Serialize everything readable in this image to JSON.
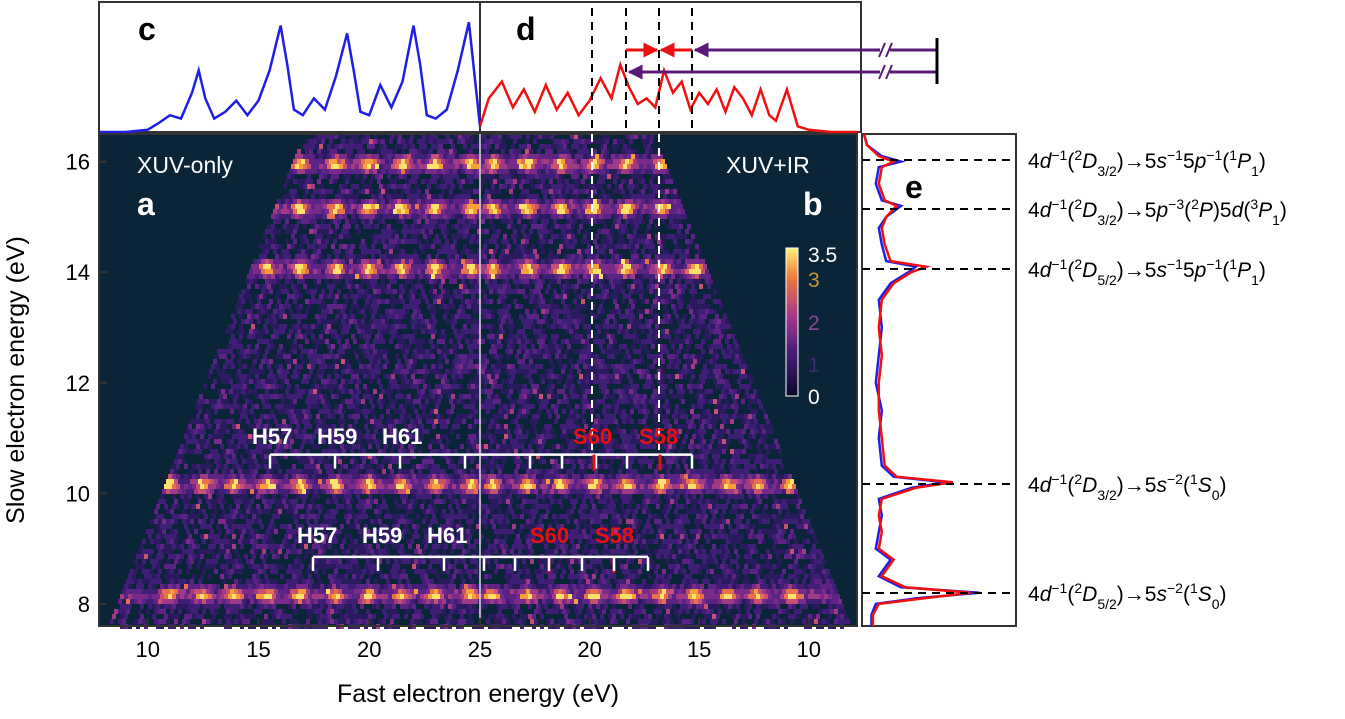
{
  "chart_data": [
    {
      "panel": "a",
      "type": "heatmap",
      "panel_label": "a",
      "annotation": "XUV-only",
      "xlabel": "Fast electron energy (eV)",
      "ylabel": "Slow electron energy (eV)",
      "x_ticks": [
        "10",
        "15",
        "20",
        "25"
      ],
      "x_tick_values": [
        10,
        15,
        20,
        25
      ],
      "y_ticks": [
        "8",
        "10",
        "12",
        "14",
        "16"
      ],
      "y_tick_values": [
        8,
        10,
        12,
        14,
        16
      ],
      "xlim": [
        7.8,
        25
      ],
      "ylim": [
        7.6,
        16.5
      ],
      "x_direction": "increasing",
      "colorbar": {
        "ticks": [
          "0",
          "1",
          "2",
          "3",
          "3.5"
        ],
        "tick_values": [
          0,
          1,
          2,
          3,
          3.5
        ],
        "range": [
          0,
          3.5
        ]
      },
      "harmonic_labels": [
        {
          "text": "H57",
          "y": 10.7,
          "x_ticks": [
            15.3,
            16.8,
            18.4,
            19.9,
            21.4,
            22.9,
            24.5
          ]
        },
        {
          "text": "H59",
          "y": 10.7
        },
        {
          "text": "H61",
          "y": 10.7
        },
        {
          "text": "H57",
          "y": 8.85,
          "x_ticks": [
            17.3,
            18.8,
            20.3,
            21.9,
            23.4,
            24.9
          ]
        },
        {
          "text": "H59",
          "y": 8.85
        },
        {
          "text": "H61",
          "y": 8.85
        }
      ],
      "bright_rows_y": [
        8.2,
        10.2,
        14.1,
        15.2,
        16.0
      ]
    },
    {
      "panel": "b",
      "type": "heatmap",
      "panel_label": "b",
      "annotation": "XUV+IR",
      "x_ticks": [
        "25",
        "20",
        "15",
        "10"
      ],
      "x_tick_values": [
        25,
        20,
        15,
        10
      ],
      "xlim": [
        25,
        7.8
      ],
      "x_direction": "decreasing",
      "sideband_labels": [
        "S60",
        "S58"
      ],
      "dashed_vertical_x": [
        20.0,
        16.8
      ],
      "bright_rows_y": [
        8.2,
        10.2,
        14.1,
        15.2,
        16.0
      ]
    },
    {
      "panel": "c",
      "type": "line",
      "panel_label": "c",
      "series_color": "#1f1fe6",
      "x": [
        7.8,
        9.0,
        10.0,
        10.5,
        11.0,
        11.5,
        12.0,
        12.3,
        12.6,
        13.0,
        13.5,
        14.0,
        14.5,
        15.0,
        15.5,
        16.0,
        16.3,
        16.6,
        17.0,
        17.5,
        18.0,
        18.5,
        19.0,
        19.3,
        19.6,
        20.0,
        20.5,
        21.0,
        21.5,
        22.0,
        22.3,
        22.6,
        23.0,
        23.5,
        24.0,
        24.5,
        25.0
      ],
      "y": [
        0.0,
        0.0,
        0.02,
        0.08,
        0.15,
        0.12,
        0.35,
        0.55,
        0.3,
        0.12,
        0.18,
        0.28,
        0.15,
        0.28,
        0.55,
        0.95,
        0.6,
        0.2,
        0.15,
        0.3,
        0.2,
        0.5,
        0.88,
        0.55,
        0.18,
        0.15,
        0.42,
        0.22,
        0.45,
        0.95,
        0.6,
        0.15,
        0.12,
        0.2,
        0.55,
        0.98,
        0.05
      ]
    },
    {
      "panel": "d",
      "type": "line",
      "panel_label": "d",
      "series_color": "#f01010",
      "x": [
        25.0,
        24.6,
        24.0,
        23.5,
        23.0,
        22.5,
        22.0,
        21.5,
        21.0,
        20.5,
        20.0,
        19.5,
        19.0,
        18.6,
        18.2,
        17.8,
        17.4,
        17.0,
        16.6,
        16.2,
        15.8,
        15.4,
        15.0,
        14.6,
        14.2,
        13.8,
        13.4,
        13.0,
        12.6,
        12.2,
        11.8,
        11.5,
        11.0,
        10.5,
        10.0,
        9.0,
        7.8
      ],
      "y": [
        0.05,
        0.3,
        0.45,
        0.22,
        0.38,
        0.18,
        0.42,
        0.2,
        0.35,
        0.15,
        0.28,
        0.48,
        0.3,
        0.6,
        0.4,
        0.25,
        0.3,
        0.22,
        0.55,
        0.35,
        0.45,
        0.2,
        0.35,
        0.25,
        0.38,
        0.18,
        0.4,
        0.3,
        0.15,
        0.38,
        0.15,
        0.1,
        0.38,
        0.05,
        0.02,
        0.0,
        0.0
      ],
      "dashed_vertical_x": [
        20.0,
        18.5,
        16.8,
        15.4
      ],
      "arrow_colors": {
        "sideband": "#e81010",
        "harmonic": "#5a1a78"
      }
    },
    {
      "panel": "e",
      "type": "line",
      "panel_label": "e",
      "orientation": "vertical",
      "series": [
        {
          "color": "#1f1fe6",
          "y": [
            7.6,
            7.8,
            8.0,
            8.1,
            8.2,
            8.3,
            8.5,
            8.8,
            9.0,
            9.3,
            9.6,
            9.9,
            10.1,
            10.2,
            10.3,
            10.5,
            11.0,
            11.5,
            12.0,
            12.5,
            13.0,
            13.5,
            13.8,
            14.0,
            14.1,
            14.2,
            14.5,
            14.8,
            15.0,
            15.2,
            15.3,
            15.6,
            15.9,
            16.0,
            16.1,
            16.3,
            16.5
          ],
          "x": [
            0.05,
            0.05,
            0.08,
            0.35,
            0.78,
            0.25,
            0.1,
            0.18,
            0.08,
            0.1,
            0.12,
            0.1,
            0.32,
            0.55,
            0.2,
            0.12,
            0.1,
            0.12,
            0.08,
            0.1,
            0.12,
            0.1,
            0.18,
            0.3,
            0.35,
            0.15,
            0.12,
            0.1,
            0.15,
            0.25,
            0.12,
            0.08,
            0.1,
            0.25,
            0.12,
            0.02,
            0.0
          ]
        },
        {
          "color": "#f01010",
          "y": [
            7.6,
            7.8,
            8.0,
            8.1,
            8.2,
            8.3,
            8.5,
            8.8,
            9.0,
            9.3,
            9.6,
            9.9,
            10.1,
            10.2,
            10.3,
            10.5,
            11.0,
            11.5,
            12.0,
            12.5,
            13.0,
            13.5,
            13.8,
            14.0,
            14.1,
            14.2,
            14.5,
            14.8,
            15.0,
            15.2,
            15.3,
            15.6,
            15.9,
            16.0,
            16.1,
            16.3,
            16.5
          ],
          "x": [
            0.06,
            0.06,
            0.1,
            0.4,
            0.72,
            0.28,
            0.12,
            0.2,
            0.1,
            0.12,
            0.1,
            0.12,
            0.35,
            0.6,
            0.22,
            0.14,
            0.12,
            0.1,
            0.1,
            0.12,
            0.1,
            0.12,
            0.2,
            0.32,
            0.42,
            0.18,
            0.14,
            0.12,
            0.15,
            0.22,
            0.14,
            0.1,
            0.12,
            0.2,
            0.1,
            0.02,
            0.0
          ]
        }
      ],
      "state_labels_y": [
        16.0,
        15.2,
        14.0,
        10.1,
        8.1
      ]
    }
  ],
  "labels": {
    "panel_c": "c",
    "panel_d": "d",
    "panel_a": "a",
    "panel_b": "b",
    "panel_e": "e",
    "xuv_only": "XUV-only",
    "xuv_ir": "XUV+IR",
    "xlabel": "Fast electron energy (eV)",
    "ylabel": "Slow electron energy (eV)",
    "h57": "H57",
    "h59": "H59",
    "h61": "H61",
    "s60": "S60",
    "s58": "S58",
    "cb_35": "3.5",
    "cb_3": "3",
    "cb_2": "2",
    "cb_1": "1",
    "cb_0": "0"
  },
  "states": [
    {
      "base": "4d",
      "sup1": "−1",
      "paren1": "(",
      "sup2": "2",
      "term": "D",
      "sub": "3/2",
      "arrow": ")→",
      "config": "5s",
      "sup3": "−1",
      "config2": "5p",
      "sup4": "−1",
      "paren2": "(",
      "sup5": "1",
      "term2": "P",
      "sub2": "1",
      "close": ")"
    },
    {
      "base": "4d",
      "sup1": "−1",
      "paren1": "(",
      "sup2": "2",
      "term": "D",
      "sub": "3/2",
      "arrow": ")→",
      "config": "5p",
      "sup3": "−3",
      "config2": "(",
      "sup4": "2",
      "paren2": "P)5d(",
      "sup5": "3",
      "term2": "P",
      "sub2": "1",
      "close": ")"
    },
    {
      "base": "4d",
      "sup1": "−1",
      "paren1": "(",
      "sup2": "2",
      "term": "D",
      "sub": "5/2",
      "arrow": ")→",
      "config": "5s",
      "sup3": "−1",
      "config2": "5p",
      "sup4": "−1",
      "paren2": "(",
      "sup5": "1",
      "term2": "P",
      "sub2": "1",
      "close": ")"
    },
    {
      "base": "4d",
      "sup1": "−1",
      "paren1": "(",
      "sup2": "2",
      "term": "D",
      "sub": "3/2",
      "arrow": ")→",
      "config": "5s",
      "sup3": "−2",
      "config2": "",
      "sup4": "",
      "paren2": "(",
      "sup5": "1",
      "term2": "S",
      "sub2": "0",
      "close": ")"
    },
    {
      "base": "4d",
      "sup1": "−1",
      "paren1": "(",
      "sup2": "2",
      "term": "D",
      "sub": "5/2",
      "arrow": ")→",
      "config": "5s",
      "sup3": "−2",
      "config2": "",
      "sup4": "",
      "paren2": "(",
      "sup5": "1",
      "term2": "S",
      "sub2": "0",
      "close": ")"
    }
  ],
  "colors": {
    "map_background": "#0b2538",
    "blue_line": "#1f1fe6",
    "red_line": "#f01010",
    "purple_arrow": "#5a1a78",
    "red_label": "#e81010"
  }
}
